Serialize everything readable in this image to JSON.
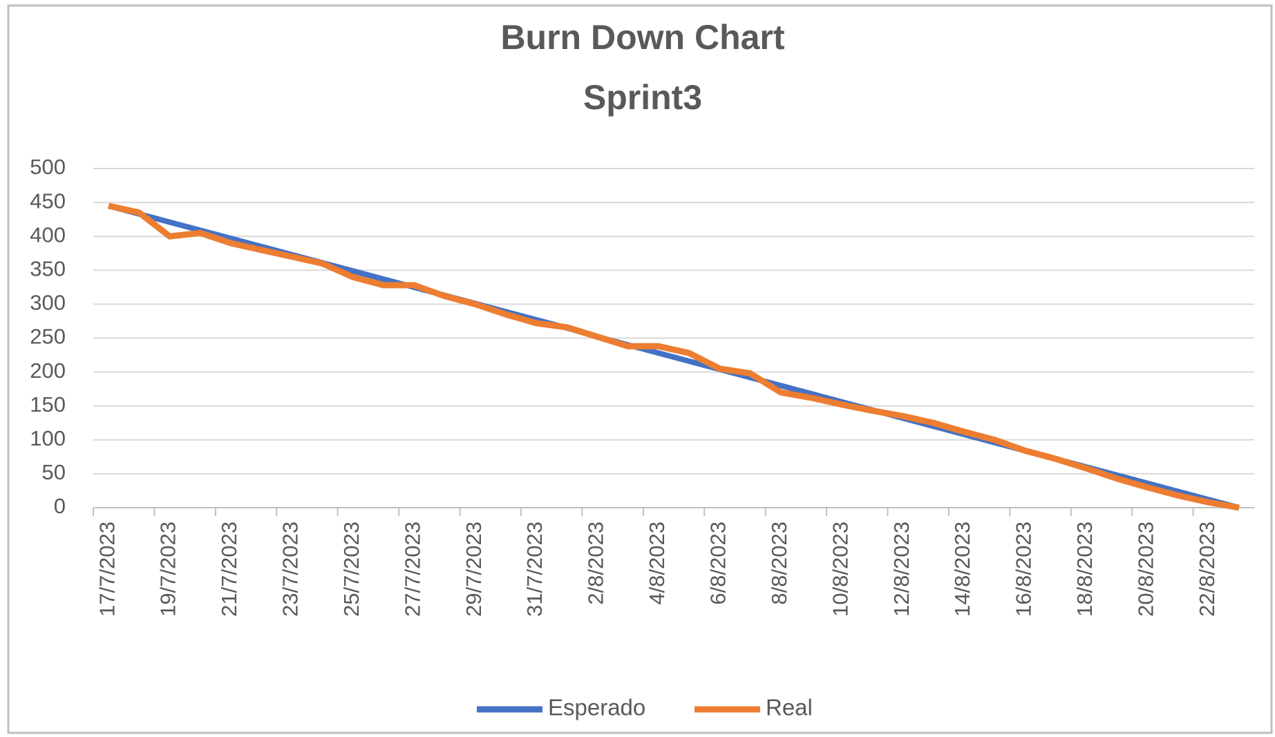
{
  "chart_data": {
    "type": "line",
    "title": "Burn Down Chart",
    "subtitle": "Sprint3",
    "categories": [
      "17/7/2023",
      null,
      "19/7/2023",
      null,
      "21/7/2023",
      null,
      "23/7/2023",
      null,
      "25/7/2023",
      null,
      "27/7/2023",
      null,
      "29/7/2023",
      null,
      "31/7/2023",
      null,
      "2/8/2023",
      null,
      "4/8/2023",
      null,
      "6/8/2023",
      null,
      "8/8/2023",
      null,
      "10/8/2023",
      null,
      "12/8/2023",
      null,
      "14/8/2023",
      null,
      "16/8/2023",
      null,
      "18/8/2023",
      null,
      "20/8/2023",
      null,
      "22/8/2023",
      null
    ],
    "series": [
      {
        "name": "Esperado",
        "color": "#4472c4",
        "values": [
          445,
          433,
          421,
          409,
          397,
          385,
          373,
          361,
          349,
          337,
          325,
          313,
          301,
          289,
          277,
          265,
          252,
          240,
          228,
          216,
          204,
          192,
          180,
          168,
          156,
          144,
          132,
          120,
          108,
          96,
          84,
          72,
          60,
          48,
          36,
          24,
          12,
          0
        ]
      },
      {
        "name": "Real",
        "color": "#ed7d31",
        "values": [
          445,
          435,
          400,
          405,
          390,
          380,
          370,
          360,
          340,
          328,
          328,
          312,
          300,
          285,
          272,
          266,
          252,
          238,
          238,
          228,
          205,
          198,
          170,
          162,
          152,
          143,
          135,
          125,
          112,
          100,
          84,
          72,
          58,
          43,
          30,
          18,
          8,
          0
        ]
      }
    ],
    "ylim": [
      0,
      500
    ],
    "yticks": [
      0,
      50,
      100,
      150,
      200,
      250,
      300,
      350,
      400,
      450,
      500
    ],
    "grid": true
  }
}
